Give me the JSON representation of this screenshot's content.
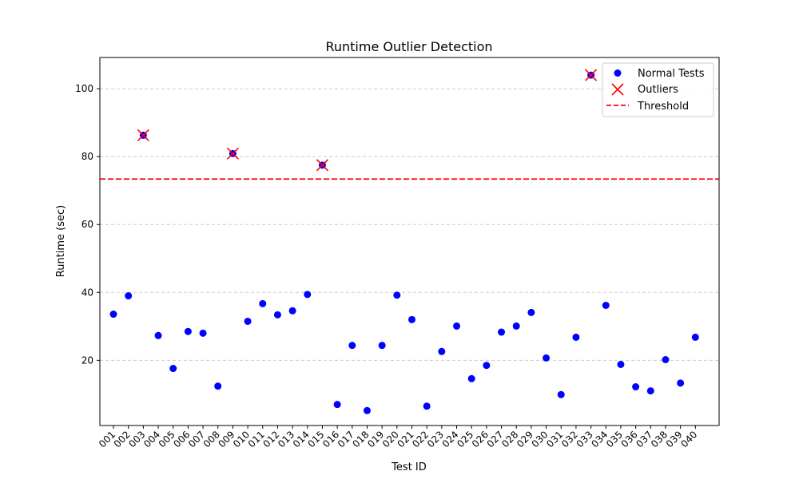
{
  "chart_data": {
    "type": "scatter",
    "title": "Runtime Outlier Detection",
    "xlabel": "Test ID",
    "ylabel": "Runtime (sec)",
    "categories": [
      "001",
      "002",
      "003",
      "004",
      "005",
      "006",
      "007",
      "008",
      "009",
      "010",
      "011",
      "012",
      "013",
      "014",
      "015",
      "016",
      "017",
      "018",
      "019",
      "020",
      "021",
      "022",
      "023",
      "024",
      "025",
      "026",
      "027",
      "028",
      "029",
      "030",
      "031",
      "032",
      "033",
      "034",
      "035",
      "036",
      "037",
      "038",
      "039",
      "040"
    ],
    "values": [
      33.6,
      39.0,
      86.3,
      27.3,
      17.6,
      28.5,
      28.0,
      12.4,
      80.9,
      31.5,
      36.7,
      33.4,
      34.6,
      39.4,
      77.5,
      7.0,
      24.4,
      5.2,
      24.4,
      39.2,
      32.0,
      6.5,
      22.6,
      30.1,
      14.6,
      18.5,
      28.3,
      30.1,
      34.1,
      20.7,
      9.9,
      26.8,
      104.0,
      36.2,
      18.8,
      12.2,
      11.0,
      20.2,
      13.3,
      26.8
    ],
    "outlier_categories": [
      "003",
      "009",
      "015",
      "033"
    ],
    "outlier_values": [
      86.3,
      80.9,
      77.5,
      104.0
    ],
    "threshold": 73.4,
    "ylim": [
      0.8,
      109.2
    ],
    "yticks": [
      20,
      40,
      60,
      80,
      100
    ],
    "grid": "y-dashed",
    "legend_position": "top-right",
    "legend": [
      {
        "label": "Normal Tests",
        "marker": "dot",
        "color": "#0000ff"
      },
      {
        "label": "Outliers",
        "marker": "x",
        "color": "#ff0000"
      },
      {
        "label": "Threshold",
        "marker": "dashed-line",
        "color": "#ff0000"
      }
    ],
    "colors": {
      "normal": "#0000ff",
      "outlier": "#ff0000",
      "threshold": "#ff0000",
      "grid": "#cccccc"
    }
  }
}
